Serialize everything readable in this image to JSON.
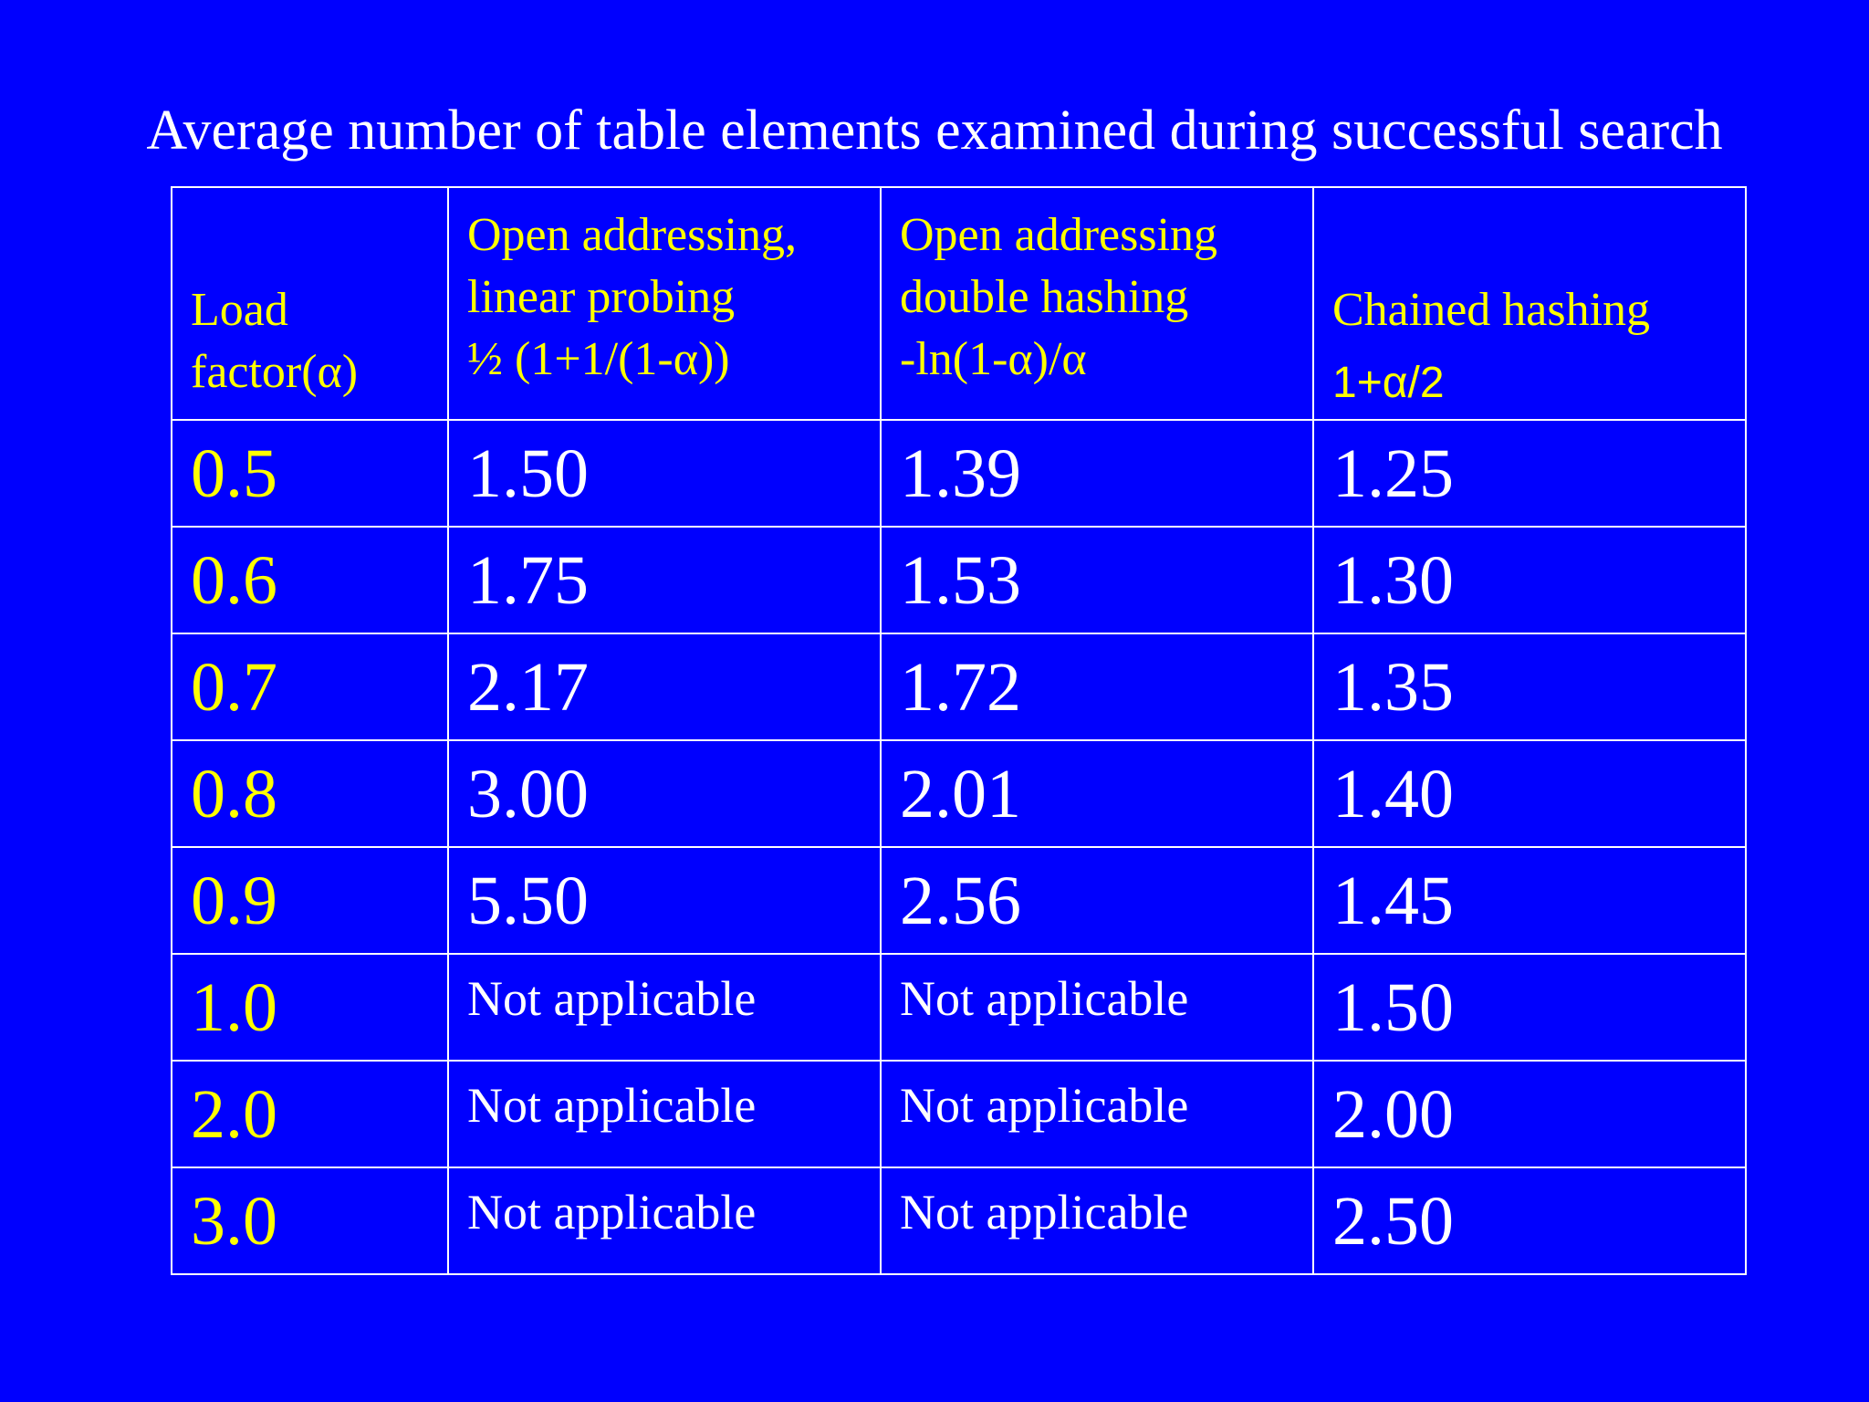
{
  "title": "Average number of table elements examined during successful search",
  "header": {
    "col0": {
      "line1": "Load",
      "line2": "factor(α)"
    },
    "col1": {
      "line1": "Open addressing,",
      "line2": "linear probing",
      "formula": "½ (1+1/(1-α))"
    },
    "col2": {
      "line1": "Open addressing",
      "line2": "double hashing",
      "formula": "-ln(1-α)/α"
    },
    "col3": {
      "line1": "Chained hashing",
      "formula": "1+α/2"
    }
  },
  "rows": [
    {
      "alpha": "0.5",
      "linear": "1.50",
      "double": "1.39",
      "chained": "1.25"
    },
    {
      "alpha": "0.6",
      "linear": "1.75",
      "double": "1.53",
      "chained": "1.30"
    },
    {
      "alpha": "0.7",
      "linear": "2.17",
      "double": "1.72",
      "chained": "1.35"
    },
    {
      "alpha": "0.8",
      "linear": "3.00",
      "double": "2.01",
      "chained": "1.40"
    },
    {
      "alpha": "0.9",
      "linear": "5.50",
      "double": "2.56",
      "chained": "1.45"
    },
    {
      "alpha": "1.0",
      "linear": "Not applicable",
      "double": "Not applicable",
      "chained": "1.50"
    },
    {
      "alpha": "2.0",
      "linear": "Not applicable",
      "double": "Not applicable",
      "chained": "2.00"
    },
    {
      "alpha": "3.0",
      "linear": "Not applicable",
      "double": "Not applicable",
      "chained": "2.50"
    }
  ],
  "colors": {
    "background": "#0000fe",
    "header_text": "#ffff00",
    "load_factor_text": "#ffff00",
    "value_text": "#ffffff",
    "border": "#ffffff"
  }
}
